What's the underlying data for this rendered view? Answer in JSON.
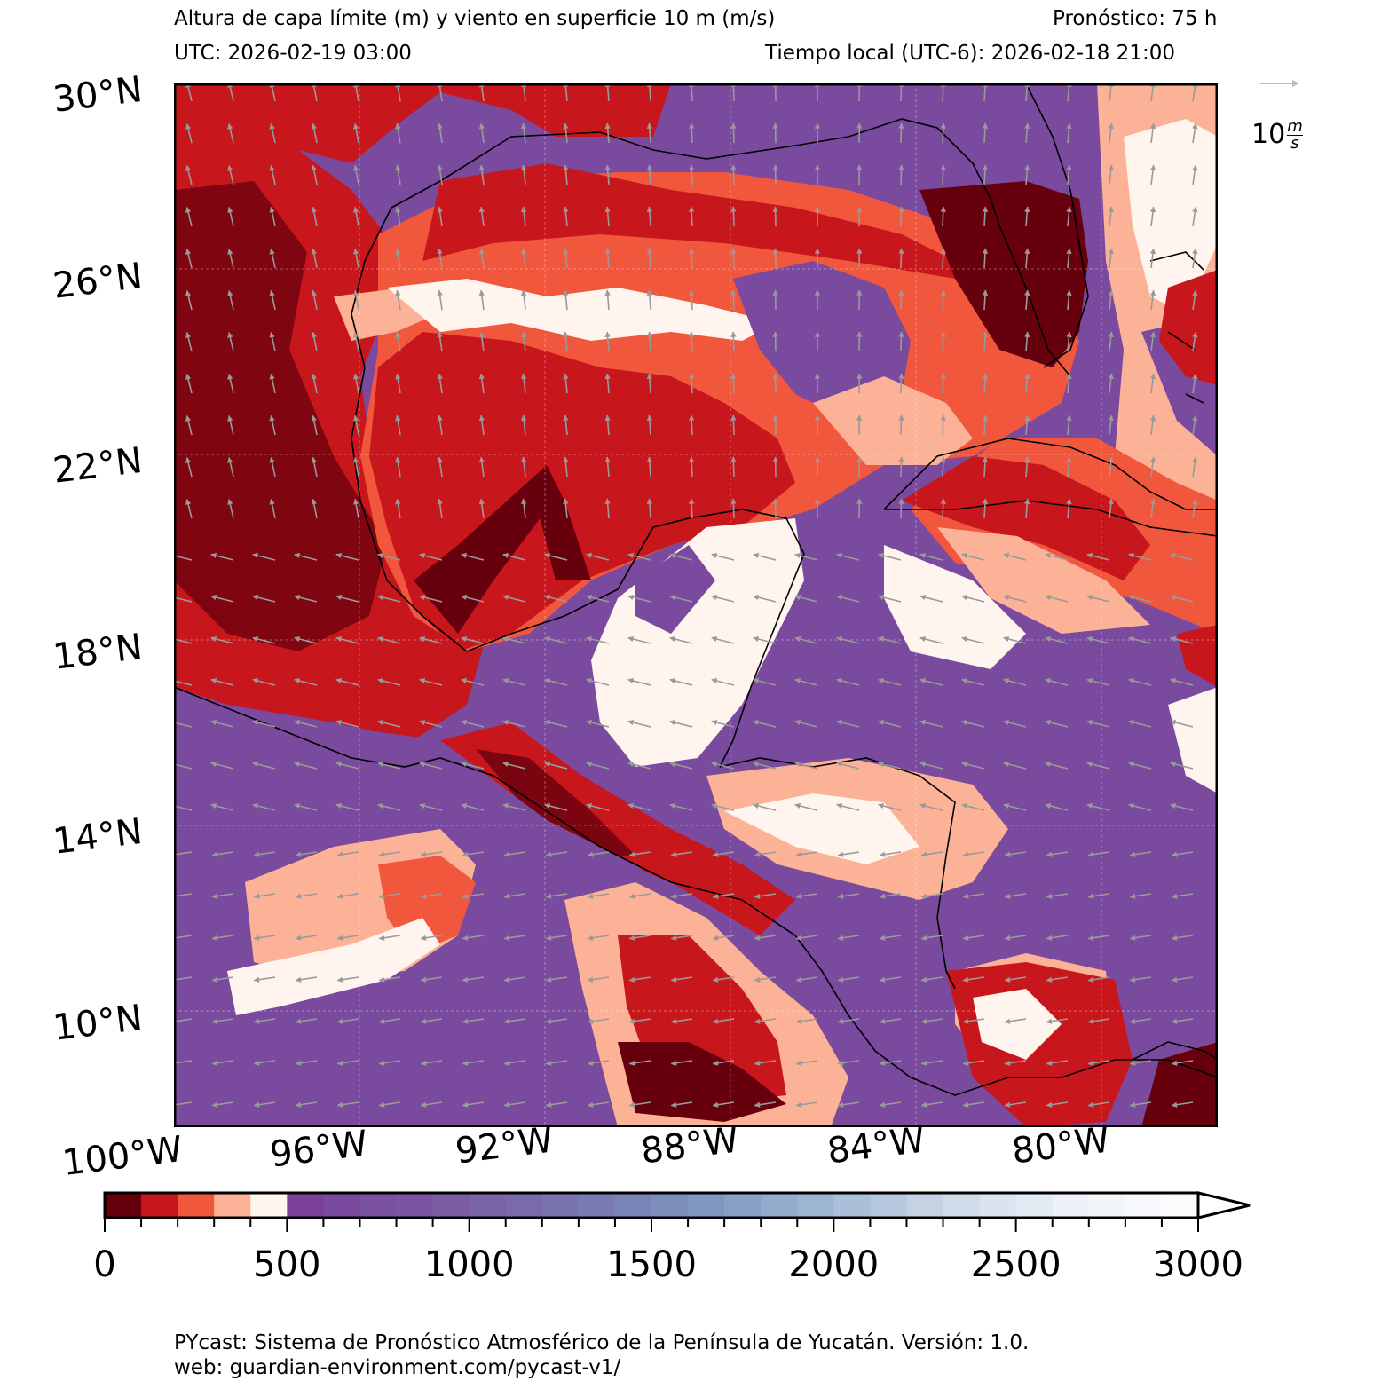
{
  "header": {
    "title": "Altura de capa límite (m) y viento en superficie 10 m (m/s)",
    "forecast": "Pronóstico: 75 h",
    "utc": "UTC:  2026-02-19 03:00",
    "local_time": "Tiempo local (UTC-6): 2026-02-18 21:00"
  },
  "map": {
    "lat_labels": [
      "30°N",
      "26°N",
      "22°N",
      "18°N",
      "14°N",
      "10°N"
    ],
    "lon_labels": [
      "100°W",
      "96°W",
      "92°W",
      "88°W",
      "84°W",
      "80°W"
    ],
    "wind_reference": {
      "value": "10",
      "unit_numerator": "m",
      "unit_denominator": "s"
    },
    "extent": {
      "lon_min": -100,
      "lon_max": -77.5,
      "lat_min": 7.5,
      "lat_max": 30
    }
  },
  "colorbar": {
    "ticks": [
      "0",
      "500",
      "1000",
      "1500",
      "2000",
      "2500",
      "3000"
    ],
    "min": 0,
    "max": 3000,
    "step": 100,
    "extend": "max",
    "colors": [
      "#67000d",
      "#c8161d",
      "#f0573d",
      "#fbb296",
      "#fff4ee",
      "#7b419a",
      "#7a4a9e",
      "#7a519f",
      "#7a56a2",
      "#7a5ba4",
      "#7a63a8",
      "#7a6aab",
      "#7a74ae",
      "#7a7bb3",
      "#7b84b7",
      "#7d8dbc",
      "#8196c1",
      "#89a0c6",
      "#93abcc",
      "#9eb5d2",
      "#aabfd8",
      "#b7c8de",
      "#c4d2e4",
      "#d0dbea",
      "#dbe3ef",
      "#e4eaf3",
      "#ecf0f7",
      "#f2f5fa",
      "#f7f9fc",
      "#fafbfd"
    ]
  },
  "footer": {
    "line1": "PYcast: Sistema de Pronóstico Atmosférico de la Península de Yucatán. Versión: 1.0.",
    "line2": "web: guardian-environment.com/pycast-v1/"
  }
}
